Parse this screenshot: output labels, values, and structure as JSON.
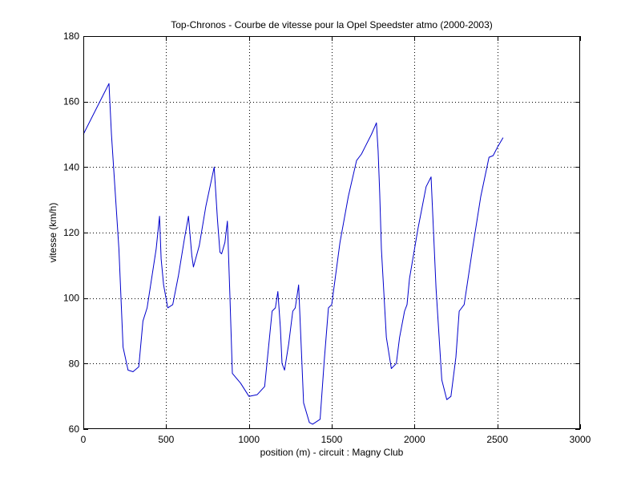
{
  "chart_data": {
    "type": "line",
    "title": "Top-Chronos - Courbe de vitesse pour la Opel Speedster atmo (2000-2003)",
    "xlabel": "position (m) - circuit : Magny Club",
    "ylabel": "vitesse (km/h)",
    "xlim": [
      0,
      3000
    ],
    "ylim": [
      60,
      180
    ],
    "xticks": [
      0,
      500,
      1000,
      1500,
      2000,
      2500,
      3000
    ],
    "yticks": [
      60,
      80,
      100,
      120,
      140,
      160,
      180
    ],
    "xtick_labels": [
      "0",
      "500",
      "1000",
      "1500",
      "2000",
      "2500",
      "3000"
    ],
    "ytick_labels": [
      "60",
      "80",
      "100",
      "120",
      "140",
      "160",
      "180"
    ],
    "grid": true,
    "line_color": "#0000cc",
    "series": [
      {
        "x": [
          0,
          155,
          170,
          215,
          240,
          270,
          300,
          335,
          360,
          385,
          440,
          460,
          470,
          485,
          510,
          540,
          575,
          610,
          635,
          655,
          665,
          700,
          740,
          790,
          810,
          825,
          835,
          855,
          870,
          885,
          900,
          950,
          1000,
          1050,
          1095,
          1140,
          1160,
          1175,
          1190,
          1200,
          1215,
          1240,
          1265,
          1280,
          1300,
          1330,
          1365,
          1385,
          1430,
          1455,
          1480,
          1500,
          1550,
          1600,
          1650,
          1680,
          1700,
          1740,
          1770,
          1780,
          1790,
          1800,
          1830,
          1860,
          1890,
          1910,
          1940,
          1955,
          1970,
          2020,
          2070,
          2100,
          2115,
          2130,
          2165,
          2195,
          2220,
          2250,
          2270,
          2300,
          2350,
          2400,
          2450,
          2475,
          2500,
          2535
        ],
        "y": [
          150,
          165.5,
          150,
          115,
          85,
          78,
          77.5,
          79,
          93,
          97,
          115,
          125,
          112,
          104,
          97,
          98,
          107,
          118,
          125,
          113,
          109.5,
          116,
          128,
          140,
          124,
          114,
          113.5,
          117,
          123.5,
          101,
          77,
          74,
          70,
          70.5,
          73,
          96,
          97,
          102,
          91,
          80,
          78,
          86,
          96,
          97,
          104,
          68,
          62,
          61.5,
          63,
          81,
          97,
          98,
          117,
          131,
          142,
          144,
          146,
          150,
          153.5,
          145,
          132,
          115,
          88,
          78.5,
          80,
          88,
          96,
          98,
          106,
          121,
          134,
          137,
          120,
          103,
          75,
          69,
          70,
          82,
          96,
          98,
          115,
          131,
          143,
          143.5,
          146,
          149
        ]
      }
    ]
  }
}
